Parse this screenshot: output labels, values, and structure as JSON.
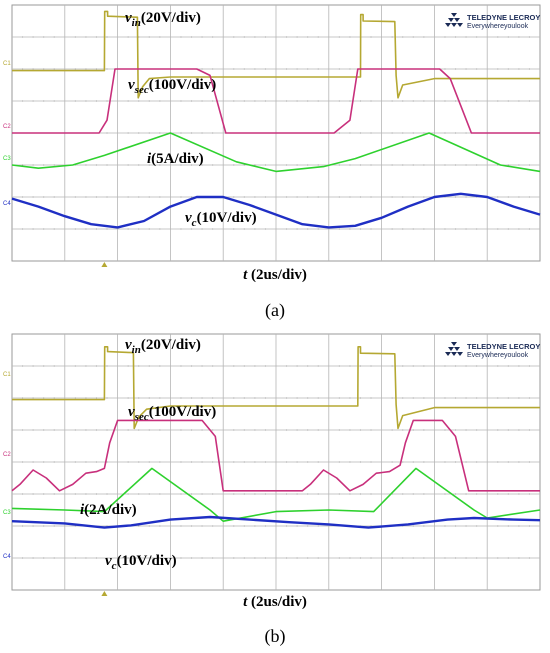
{
  "chart_data": [
    {
      "type": "line",
      "caption": "(a)",
      "brand": {
        "line1": "TELEDYNE LECROY",
        "line2": "Everywhereyoulook"
      },
      "x_label_var": "t",
      "x_label_unit": "(2us/div)",
      "x_range_us": [
        0,
        20
      ],
      "grid": {
        "x_divisions": 10,
        "y_divisions": 8,
        "visible": true
      },
      "series": [
        {
          "name": "v_in",
          "label_var": "v",
          "label_sub": "in",
          "label_unit": "(20V/div)",
          "color": "#b5a832",
          "channel": "C1",
          "points": [
            [
              0,
              2.05
            ],
            [
              3.5,
              2.05
            ],
            [
              3.51,
              0.2
            ],
            [
              3.62,
              0.2
            ],
            [
              3.62,
              0.35
            ],
            [
              4.7,
              0.38
            ],
            [
              4.75,
              0.38
            ],
            [
              4.78,
              2.9
            ],
            [
              4.95,
              2.55
            ],
            [
              5.2,
              2.3
            ],
            [
              6.0,
              2.25
            ],
            [
              10.0,
              2.25
            ],
            [
              13.2,
              2.25
            ],
            [
              13.21,
              0.3
            ],
            [
              13.3,
              0.3
            ],
            [
              13.3,
              0.5
            ],
            [
              14.5,
              0.52
            ],
            [
              14.55,
              2.2
            ],
            [
              14.62,
              2.9
            ],
            [
              14.8,
              2.5
            ],
            [
              16.0,
              2.3
            ],
            [
              20,
              2.3
            ]
          ]
        },
        {
          "name": "v_sec",
          "label_var": "v",
          "label_sub": "sec",
          "label_unit": "(100V/div)",
          "color": "#c8307c",
          "channel": "C2",
          "points": [
            [
              0,
              4.0
            ],
            [
              3.3,
              4.0
            ],
            [
              3.6,
              3.6
            ],
            [
              3.9,
              2.0
            ],
            [
              4.2,
              2.0
            ],
            [
              7.0,
              2.0
            ],
            [
              7.5,
              2.2
            ],
            [
              8.1,
              4.0
            ],
            [
              12.2,
              4.0
            ],
            [
              12.8,
              3.6
            ],
            [
              13.1,
              2.0
            ],
            [
              13.3,
              2.0
            ],
            [
              16.2,
              2.0
            ],
            [
              16.6,
              2.3
            ],
            [
              17.4,
              4.0
            ],
            [
              20,
              4.0
            ]
          ]
        },
        {
          "name": "i",
          "label_var": "i",
          "label_sub": "",
          "label_unit": "(5A/div)",
          "color": "#2ed12e",
          "channel": "C3",
          "points": [
            [
              0,
              5.0
            ],
            [
              1.0,
              5.1
            ],
            [
              2.3,
              5.0
            ],
            [
              3.5,
              4.7
            ],
            [
              6.0,
              4.0
            ],
            [
              8.5,
              4.9
            ],
            [
              10.0,
              5.2
            ],
            [
              11.8,
              5.05
            ],
            [
              13.0,
              4.8
            ],
            [
              15.8,
              4.0
            ],
            [
              18.5,
              5.0
            ],
            [
              20,
              5.2
            ]
          ]
        },
        {
          "name": "v_c",
          "label_var": "v",
          "label_sub": "c",
          "label_unit": "(10V/div)",
          "color": "#1f2fc4",
          "channel": "C4",
          "points": [
            [
              0,
              6.05
            ],
            [
              1.0,
              6.3
            ],
            [
              2.0,
              6.6
            ],
            [
              3.0,
              6.85
            ],
            [
              4.0,
              6.95
            ],
            [
              5.0,
              6.75
            ],
            [
              6.0,
              6.3
            ],
            [
              7.0,
              6.0
            ],
            [
              8.0,
              6.0
            ],
            [
              9.0,
              6.25
            ],
            [
              10.0,
              6.55
            ],
            [
              11.0,
              6.85
            ],
            [
              12.0,
              6.95
            ],
            [
              13.0,
              6.9
            ],
            [
              14.0,
              6.65
            ],
            [
              15.0,
              6.3
            ],
            [
              16.0,
              6.0
            ],
            [
              17.0,
              5.9
            ],
            [
              18.0,
              6.0
            ],
            [
              19.0,
              6.3
            ],
            [
              20,
              6.55
            ]
          ]
        }
      ]
    },
    {
      "type": "line",
      "caption": "(b)",
      "brand": {
        "line1": "TELEDYNE LECROY",
        "line2": "Everywhereyoulook"
      },
      "x_label_var": "t",
      "x_label_unit": "(2us/div)",
      "x_range_us": [
        0,
        20
      ],
      "grid": {
        "x_divisions": 10,
        "y_divisions": 8,
        "visible": true
      },
      "series": [
        {
          "name": "v_in",
          "label_var": "v",
          "label_sub": "in",
          "label_unit": "(20V/div)",
          "color": "#b5a832",
          "channel": "C1",
          "points": [
            [
              0,
              2.05
            ],
            [
              3.5,
              2.05
            ],
            [
              3.51,
              0.4
            ],
            [
              3.62,
              0.4
            ],
            [
              3.62,
              0.55
            ],
            [
              4.55,
              0.58
            ],
            [
              4.6,
              0.6
            ],
            [
              4.63,
              2.95
            ],
            [
              4.8,
              2.6
            ],
            [
              5.1,
              2.35
            ],
            [
              6.0,
              2.25
            ],
            [
              13.1,
              2.25
            ],
            [
              13.11,
              0.4
            ],
            [
              13.2,
              0.4
            ],
            [
              13.2,
              0.6
            ],
            [
              14.5,
              0.62
            ],
            [
              14.55,
              2.2
            ],
            [
              14.62,
              2.95
            ],
            [
              14.8,
              2.55
            ],
            [
              16.0,
              2.3
            ],
            [
              20,
              2.3
            ]
          ]
        },
        {
          "name": "v_sec",
          "label_var": "v",
          "label_sub": "sec",
          "label_unit": "(100V/div)",
          "color": "#c8307c",
          "channel": "C2",
          "points": [
            [
              0,
              4.9
            ],
            [
              0.3,
              4.7
            ],
            [
              0.8,
              4.25
            ],
            [
              1.3,
              4.5
            ],
            [
              1.8,
              4.9
            ],
            [
              2.3,
              4.7
            ],
            [
              2.8,
              4.35
            ],
            [
              3.2,
              4.3
            ],
            [
              3.5,
              4.2
            ],
            [
              3.7,
              3.4
            ],
            [
              4.0,
              2.7
            ],
            [
              7.2,
              2.7
            ],
            [
              7.7,
              3.2
            ],
            [
              8.0,
              4.9
            ],
            [
              11.0,
              4.9
            ],
            [
              11.3,
              4.7
            ],
            [
              11.8,
              4.25
            ],
            [
              12.3,
              4.5
            ],
            [
              12.8,
              4.9
            ],
            [
              13.3,
              4.7
            ],
            [
              13.8,
              4.35
            ],
            [
              14.3,
              4.3
            ],
            [
              14.7,
              4.1
            ],
            [
              14.9,
              3.4
            ],
            [
              15.2,
              2.7
            ],
            [
              16.3,
              2.7
            ],
            [
              16.8,
              3.2
            ],
            [
              17.3,
              4.9
            ],
            [
              20,
              4.9
            ]
          ]
        },
        {
          "name": "i",
          "label_var": "i",
          "label_sub": "",
          "label_unit": "(2A/div)",
          "color": "#2ed12e",
          "channel": "C3",
          "points": [
            [
              0,
              5.45
            ],
            [
              2.0,
              5.5
            ],
            [
              3.5,
              5.55
            ],
            [
              5.3,
              4.2
            ],
            [
              7.5,
              5.5
            ],
            [
              8.0,
              5.85
            ],
            [
              10.0,
              5.55
            ],
            [
              12.0,
              5.5
            ],
            [
              13.7,
              5.55
            ],
            [
              15.3,
              4.2
            ],
            [
              17.5,
              5.5
            ],
            [
              18.0,
              5.75
            ],
            [
              20,
              5.5
            ]
          ]
        },
        {
          "name": "v_c",
          "label_var": "v",
          "label_sub": "c",
          "label_unit": "(10V/div)",
          "color": "#1f2fc4",
          "channel": "C4",
          "points": [
            [
              0,
              5.85
            ],
            [
              2.0,
              5.92
            ],
            [
              3.5,
              6.05
            ],
            [
              4.5,
              5.98
            ],
            [
              6.0,
              5.8
            ],
            [
              7.5,
              5.72
            ],
            [
              9.0,
              5.8
            ],
            [
              10.5,
              5.88
            ],
            [
              12.0,
              5.95
            ],
            [
              13.5,
              6.05
            ],
            [
              15.0,
              5.95
            ],
            [
              16.5,
              5.8
            ],
            [
              17.5,
              5.75
            ],
            [
              19.0,
              5.8
            ],
            [
              20,
              5.82
            ]
          ]
        }
      ]
    }
  ]
}
